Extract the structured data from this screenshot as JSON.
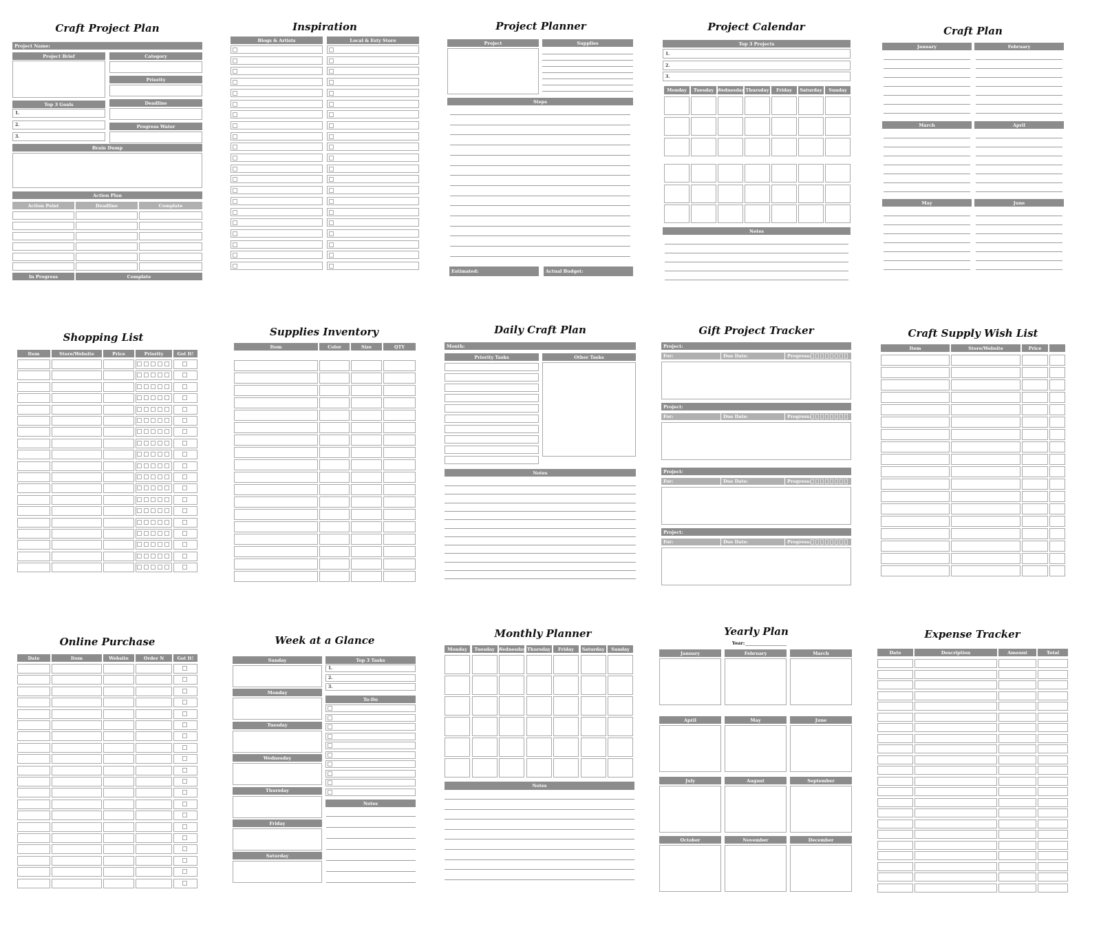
{
  "colors": {
    "header": "#8c8c8c",
    "header_light": "#b0b0b0",
    "border": "#a8a8a8"
  },
  "craft_project_plan": {
    "title": "Craft Project Plan",
    "project_name": "Project Name:",
    "project_brief": "Project Brief",
    "category": "Category",
    "priority": "Priority",
    "top_goals": "Top 3 Goals",
    "goals": [
      "1.",
      "2.",
      "3."
    ],
    "deadline": "Deadline",
    "progress_water": "Progress Water",
    "brain_dump": "Brain Dump",
    "action_plan": "Action Plan",
    "columns": [
      "Action Point",
      "Deadline",
      "Complate"
    ],
    "in_progress": "In Progress",
    "complete": "Complate"
  },
  "inspiration": {
    "title": "Inspiration",
    "columns": [
      "Blogs & Artists",
      "Local & Esty Store"
    ]
  },
  "project_planner": {
    "title": "Project Planner",
    "project": "Project",
    "supplies": "Supplies",
    "steps": "Steps",
    "estimated": "Estimated:",
    "actual_budget": "Actual Budget:"
  },
  "project_calendar": {
    "title": "Project Calendar",
    "top_projects": "Top 3 Projects",
    "projects": [
      "1.",
      "2.",
      "3."
    ],
    "days": [
      "Monday",
      "Tuesday",
      "Wednesday",
      "Thursday",
      "Friday",
      "Saturday",
      "Sunday"
    ],
    "notes": "Notes"
  },
  "craft_plan": {
    "title": "Craft Plan",
    "months": [
      "January",
      "February",
      "March",
      "April",
      "May",
      "June"
    ]
  },
  "shopping_list": {
    "title": "Shopping List",
    "columns": [
      "Item",
      "Store/Website",
      "Price",
      "Priority",
      "Got It!"
    ]
  },
  "supplies_inventory": {
    "title": "Supplies Inventory",
    "columns": [
      "Item",
      "Color",
      "Size",
      "QTY"
    ]
  },
  "daily_craft_plan": {
    "title": "Daily Craft Plan",
    "month": "Month:",
    "priority_tasks": "Priority Tasks",
    "other_tasks": "Other Tasks",
    "notes": "Notes"
  },
  "gift_project_tracker": {
    "title": "Gift Project Tracker",
    "project": "Project:",
    "for": "For:",
    "due_date": "Due Date:",
    "progress": "Progress:"
  },
  "craft_supply_wish_list": {
    "title": "Craft Supply Wish List",
    "columns": [
      "Item",
      "Store/Website",
      "Price",
      ""
    ]
  },
  "online_purchase": {
    "title": "Online Purchase",
    "columns": [
      "Date",
      "Item",
      "Website",
      "Order N",
      "Got It!"
    ]
  },
  "week_at_a_glance": {
    "title": "Week at a Glance",
    "days": [
      "Sunday",
      "Monday",
      "Tuesday",
      "Wednesday",
      "Thursday",
      "Friday",
      "Saturday"
    ],
    "top_tasks": "Top 3 Tasks",
    "tasks": [
      "1.",
      "2.",
      "3."
    ],
    "todo": "To-Do",
    "notes": "Notes"
  },
  "monthly_planner": {
    "title": "Monthly Planner",
    "days": [
      "Monday",
      "Tuesday",
      "Wednesday",
      "Thursday",
      "Friday",
      "Saturday",
      "Sunday"
    ],
    "notes": "Notes"
  },
  "yearly_plan": {
    "title": "Yearly Plan",
    "year": "Year:",
    "months": [
      "January",
      "February",
      "March",
      "April",
      "May",
      "June",
      "July",
      "August",
      "September",
      "October",
      "November",
      "December"
    ]
  },
  "expense_tracker": {
    "title": "Expense Tracker",
    "columns": [
      "Date",
      "Description",
      "Amount",
      "Total"
    ]
  }
}
